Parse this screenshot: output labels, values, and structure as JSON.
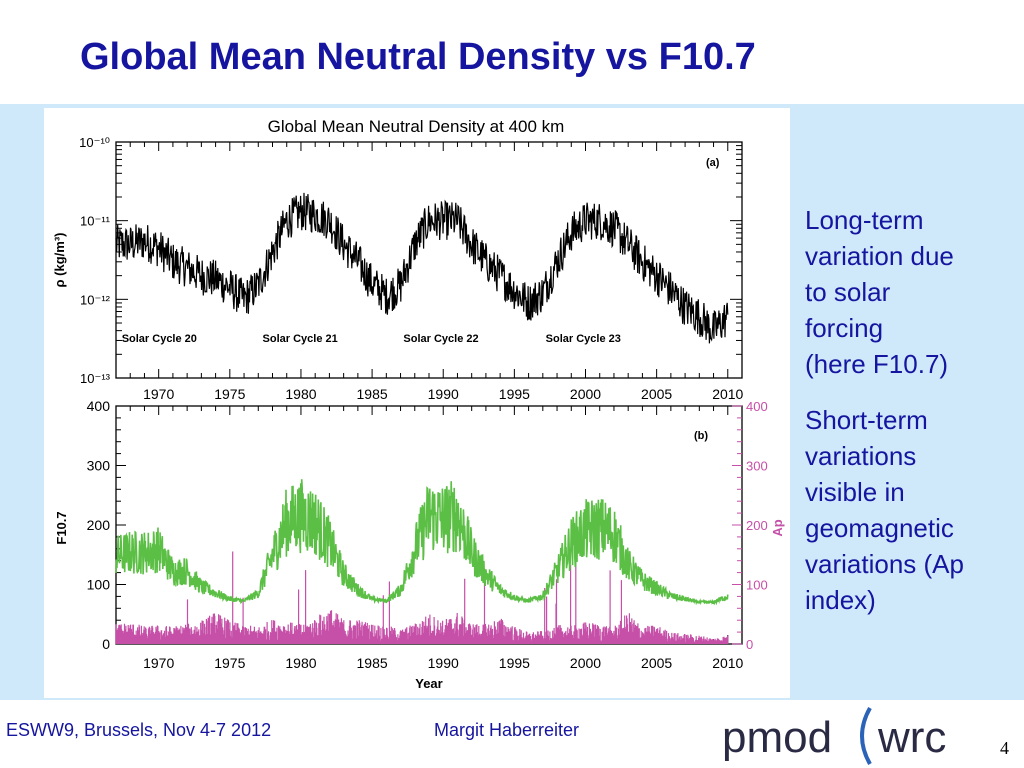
{
  "slide": {
    "title": "Global Mean Neutral Density vs F10.7",
    "side_text": [
      "Long-term\nvariation due\nto solar\nforcing\n(here F10.7)",
      "Short-term\nvariations\nvisible in\ngeomagnetic\nvariations (Ap\nindex)"
    ],
    "footer_left": "ESWW9, Brussels, Nov 4-7 2012",
    "footer_center": "Margit Haberreiter",
    "page_number": "4",
    "logo_left": "pmod",
    "logo_right": "wrc"
  },
  "colors": {
    "title": "#1515a0",
    "panel_background": "#cfe9fb",
    "density_line": "#000000",
    "f107_line": "#5cbf45",
    "ap_line": "#c64fa8",
    "ap_axis": "#c64fa8"
  },
  "chart_data": [
    {
      "type": "line",
      "title": "Global Mean Neutral Density at 400 km",
      "panel_label": "(a)",
      "xlabel": "",
      "ylabel": "ρ (kg/m³)",
      "xlim": [
        1967,
        2011
      ],
      "ylim": [
        1e-13,
        1e-10
      ],
      "yscale": "log",
      "x_ticks": [
        "1970",
        "1975",
        "1980",
        "1985",
        "1990",
        "1995",
        "2000",
        "2005",
        "2010"
      ],
      "y_ticks": [
        "10⁻¹⁰",
        "10⁻¹¹",
        "10⁻¹²",
        "10⁻¹³"
      ],
      "annotations": [
        "Solar Cycle 20",
        "Solar Cycle 21",
        "Solar Cycle 22",
        "Solar Cycle 23"
      ],
      "grid": false,
      "series": [
        {
          "color": "#000000",
          "x": [
            1967,
            1968,
            1969,
            1970,
            1971,
            1972,
            1973,
            1974,
            1975,
            1976,
            1977,
            1978,
            1979,
            1980,
            1981,
            1982,
            1983,
            1984,
            1985,
            1986,
            1987,
            1988,
            1989,
            1990,
            1991,
            1992,
            1993,
            1994,
            1995,
            1996,
            1997,
            1998,
            1999,
            2000,
            2001,
            2002,
            2003,
            2004,
            2005,
            2006,
            2007,
            2008,
            2009,
            2010
          ],
          "values": [
            5e-12,
            5e-12,
            5.5e-12,
            4.5e-12,
            3e-12,
            2.5e-12,
            2e-12,
            1.8e-12,
            1.4e-12,
            1e-12,
            1.5e-12,
            4e-12,
            1e-11,
            1.3e-11,
            1.2e-11,
            1e-11,
            5e-12,
            3e-12,
            1.6e-12,
            1.1e-12,
            1.5e-12,
            5e-12,
            1e-11,
            1e-11,
            1e-11,
            5e-12,
            3e-12,
            2e-12,
            1.3e-12,
            9e-13,
            1.2e-12,
            3e-12,
            7e-12,
            1e-11,
            1e-11,
            8e-12,
            5e-12,
            3e-12,
            2e-12,
            1.3e-12,
            8e-13,
            6e-13,
            4e-13,
            6e-13
          ]
        }
      ]
    },
    {
      "type": "line",
      "title": "",
      "panel_label": "(b)",
      "xlabel": "Year",
      "ylabel": "F10.7",
      "y2label": "Ap",
      "xlim": [
        1967,
        2011
      ],
      "ylim": [
        0,
        400
      ],
      "y2lim": [
        0,
        400
      ],
      "x_ticks": [
        "1970",
        "1975",
        "1980",
        "1985",
        "1990",
        "1995",
        "2000",
        "2005",
        "2010"
      ],
      "y_ticks": [
        "0",
        "100",
        "200",
        "300",
        "400"
      ],
      "y2_ticks": [
        "0",
        "100",
        "200",
        "300",
        "400"
      ],
      "grid": false,
      "series": [
        {
          "name": "F10.7",
          "color": "#5cbf45",
          "x": [
            1967,
            1968,
            1969,
            1970,
            1971,
            1972,
            1973,
            1974,
            1975,
            1976,
            1977,
            1978,
            1979,
            1980,
            1981,
            1982,
            1983,
            1984,
            1985,
            1986,
            1987,
            1988,
            1989,
            1990,
            1991,
            1992,
            1993,
            1994,
            1995,
            1996,
            1997,
            1998,
            1999,
            2000,
            2001,
            2002,
            2003,
            2004,
            2005,
            2006,
            2007,
            2008,
            2009,
            2010
          ],
          "values": [
            145,
            150,
            150,
            155,
            120,
            120,
            95,
            85,
            75,
            72,
            85,
            145,
            200,
            210,
            200,
            165,
            115,
            90,
            75,
            72,
            90,
            155,
            210,
            205,
            210,
            150,
            115,
            90,
            78,
            72,
            80,
            120,
            165,
            185,
            190,
            180,
            130,
            105,
            92,
            80,
            75,
            70,
            70,
            80
          ]
        },
        {
          "name": "Ap",
          "color": "#c64fa8",
          "x": [
            1967,
            1968,
            1969,
            1970,
            1971,
            1972,
            1973,
            1974,
            1975,
            1976,
            1977,
            1978,
            1979,
            1980,
            1981,
            1982,
            1983,
            1984,
            1985,
            1986,
            1987,
            1988,
            1989,
            1990,
            1991,
            1992,
            1993,
            1994,
            1995,
            1996,
            1997,
            1998,
            1999,
            2000,
            2001,
            2002,
            2003,
            2004,
            2005,
            2006,
            2007,
            2008,
            2009,
            2010
          ],
          "values": [
            14,
            15,
            12,
            13,
            12,
            14,
            16,
            22,
            16,
            13,
            12,
            17,
            15,
            14,
            18,
            25,
            17,
            17,
            14,
            13,
            10,
            14,
            21,
            16,
            22,
            14,
            14,
            18,
            12,
            8,
            9,
            13,
            13,
            15,
            14,
            12,
            22,
            12,
            13,
            8,
            7,
            6,
            4,
            6
          ]
        }
      ]
    }
  ]
}
